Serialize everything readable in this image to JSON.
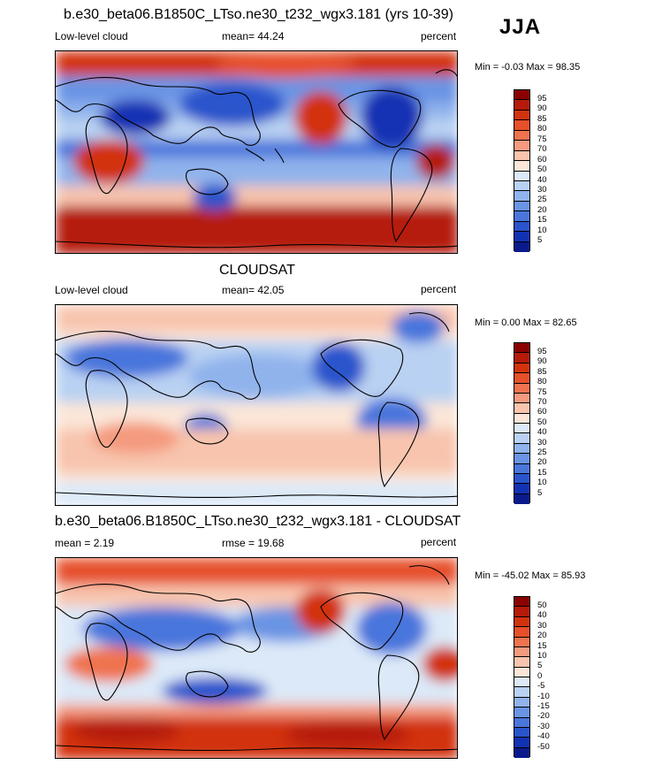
{
  "season": "JJA",
  "panels": [
    {
      "title": "b.e30_beta06.B1850C_LTso.ne30_t232_wgx3.181 (yrs 10-39)",
      "left_label": "Low-level cloud",
      "center_label": "mean=  44.24",
      "right_label": "percent",
      "minmax": "Min =  -0.03 Max =  98.35",
      "mean": 44.24
    },
    {
      "title": "CLOUDSAT",
      "left_label": "Low-level cloud",
      "center_label": "mean=  42.05",
      "right_label": "percent",
      "minmax": "Min =   0.00 Max =  82.65",
      "mean": 42.05
    },
    {
      "title": "b.e30_beta06.B1850C_LTso.ne30_t232_wgx3.181 - CLOUDSAT",
      "left_label": "mean =   2.19",
      "center_label": "rmse =  19.68",
      "right_label": "percent",
      "minmax": "Min = -45.02 Max =  85.93",
      "mean": 2.19
    }
  ],
  "colorbars": [
    {
      "labels": [
        "95",
        "90",
        "85",
        "80",
        "75",
        "70",
        "60",
        "50",
        "40",
        "30",
        "25",
        "20",
        "15",
        "10",
        "5"
      ],
      "colors": [
        "#8b0000",
        "#b51a0a",
        "#d2330f",
        "#e6502a",
        "#f07350",
        "#f49a7e",
        "#f8c4ad",
        "#fbe6d8",
        "#dce9f8",
        "#b9d1f2",
        "#90b3ec",
        "#6a94e4",
        "#4a76dc",
        "#2a54cc",
        "#1232b4",
        "#0a1a8c"
      ]
    },
    {
      "labels": [
        "95",
        "90",
        "85",
        "80",
        "75",
        "70",
        "60",
        "50",
        "40",
        "30",
        "25",
        "20",
        "15",
        "10",
        "5"
      ],
      "colors": [
        "#8b0000",
        "#b51a0a",
        "#d2330f",
        "#e6502a",
        "#f07350",
        "#f49a7e",
        "#f8c4ad",
        "#fbe6d8",
        "#dce9f8",
        "#b9d1f2",
        "#90b3ec",
        "#6a94e4",
        "#4a76dc",
        "#2a54cc",
        "#1232b4",
        "#0a1a8c"
      ]
    },
    {
      "labels": [
        "50",
        "40",
        "30",
        "20",
        "15",
        "10",
        "5",
        "0",
        "-5",
        "-10",
        "-15",
        "-20",
        "-30",
        "-40",
        "-50"
      ],
      "colors": [
        "#8b0000",
        "#b51a0a",
        "#d2330f",
        "#e6502a",
        "#f07350",
        "#f49a7e",
        "#f8c4ad",
        "#fbe6d8",
        "#dce9f8",
        "#b9d1f2",
        "#90b3ec",
        "#6a94e4",
        "#4a76dc",
        "#2a54cc",
        "#1232b4",
        "#0a1a8c"
      ]
    }
  ]
}
